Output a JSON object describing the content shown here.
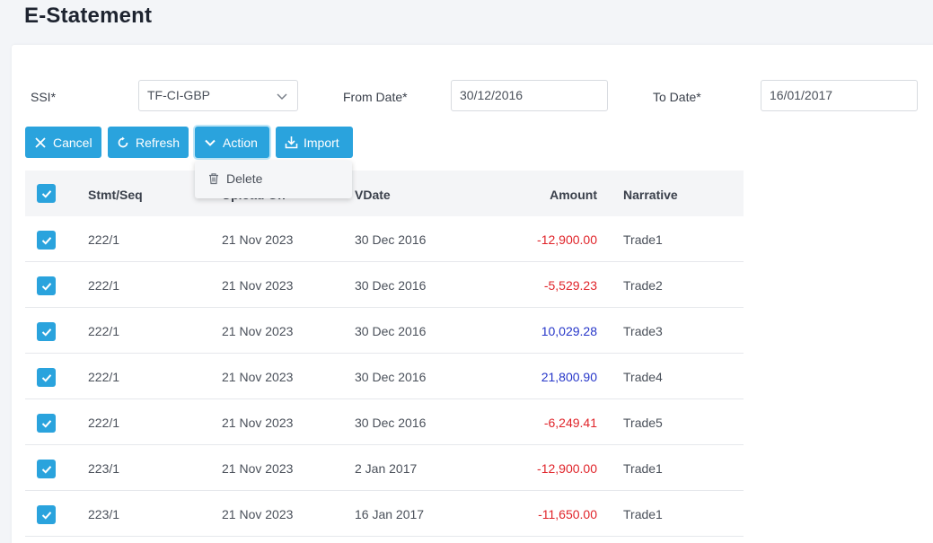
{
  "page": {
    "title": "E-Statement"
  },
  "filters": {
    "ssi_label": "SSI*",
    "ssi_value": "TF-CI-GBP",
    "from_label": "From Date*",
    "from_value": "30/12/2016",
    "to_label": "To Date*",
    "to_value": "16/01/2017"
  },
  "toolbar": {
    "cancel": "Cancel",
    "refresh": "Refresh",
    "action": "Action",
    "import": "Import"
  },
  "action_menu": {
    "items": [
      {
        "label": "Delete",
        "icon": "trash-icon"
      }
    ]
  },
  "table": {
    "columns": [
      "Stmt/Seq",
      "Upload On",
      "VDate",
      "Amount",
      "Narrative"
    ],
    "rows": [
      {
        "stmt": "222/1",
        "upload": "21 Nov 2023",
        "vdate": "30 Dec 2016",
        "amount": "-12,900.00",
        "narrative": "Trade1",
        "sign": "neg"
      },
      {
        "stmt": "222/1",
        "upload": "21 Nov 2023",
        "vdate": "30 Dec 2016",
        "amount": "-5,529.23",
        "narrative": "Trade2",
        "sign": "neg"
      },
      {
        "stmt": "222/1",
        "upload": "21 Nov 2023",
        "vdate": "30 Dec 2016",
        "amount": "10,029.28",
        "narrative": "Trade3",
        "sign": "pos"
      },
      {
        "stmt": "222/1",
        "upload": "21 Nov 2023",
        "vdate": "30 Dec 2016",
        "amount": "21,800.90",
        "narrative": "Trade4",
        "sign": "pos"
      },
      {
        "stmt": "222/1",
        "upload": "21 Nov 2023",
        "vdate": "30 Dec 2016",
        "amount": "-6,249.41",
        "narrative": "Trade5",
        "sign": "neg"
      },
      {
        "stmt": "223/1",
        "upload": "21 Nov 2023",
        "vdate": "2 Jan 2017",
        "amount": "-12,900.00",
        "narrative": "Trade1",
        "sign": "neg"
      },
      {
        "stmt": "223/1",
        "upload": "21 Nov 2023",
        "vdate": "16 Jan 2017",
        "amount": "-11,650.00",
        "narrative": "Trade1",
        "sign": "neg"
      }
    ]
  },
  "colors": {
    "accent": "#2aa3dd",
    "negative": "#e0242a",
    "positive": "#2636c9"
  }
}
